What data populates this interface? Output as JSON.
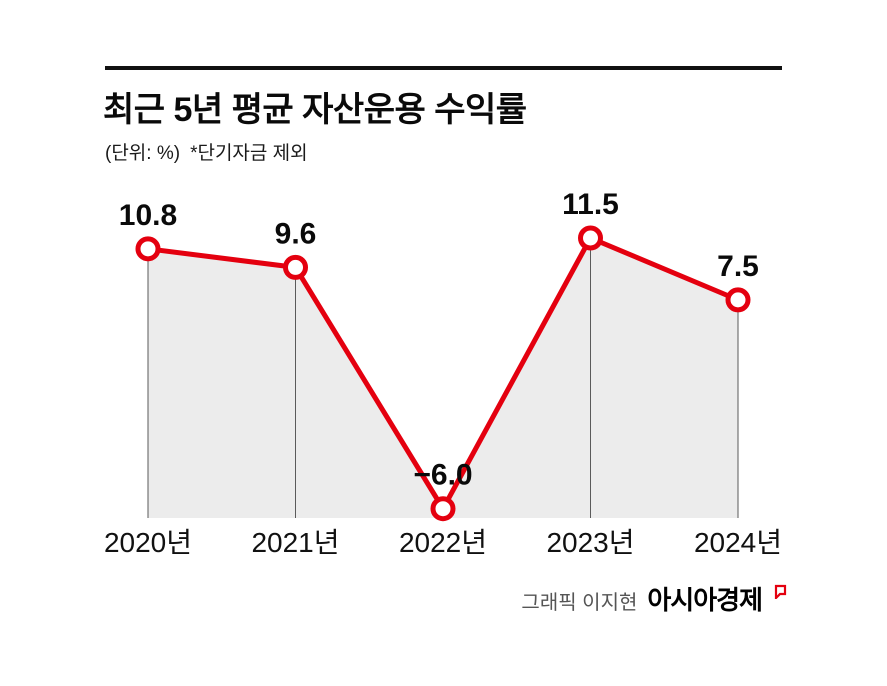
{
  "header": {
    "title": "최근 5년 평균 자산운용 수익률",
    "unit_label": "(단위: %)",
    "note_label": "*단기자금 제외"
  },
  "chart_data": {
    "type": "line",
    "title": "최근 5년 평균 자산운용 수익률",
    "unit": "%",
    "categories": [
      "2020년",
      "2021년",
      "2022년",
      "2023년",
      "2024년"
    ],
    "values": [
      10.8,
      9.6,
      -6.0,
      11.5,
      7.5
    ],
    "value_labels": [
      "10.8",
      "9.6",
      "−6.0",
      "11.5",
      "7.5"
    ],
    "xlabel": "",
    "ylabel": "",
    "ylim": [
      -6.6,
      13.2
    ],
    "grid": false,
    "legend": false,
    "colors": {
      "line": "#e4000f",
      "area_fill": "#ececec",
      "marker_fill": "#ffffff",
      "drop_line": "#5a5a5a",
      "label_text": "#0a0a0a"
    }
  },
  "footer": {
    "credit": "그래픽 이지현",
    "brand": "아시아경제"
  }
}
